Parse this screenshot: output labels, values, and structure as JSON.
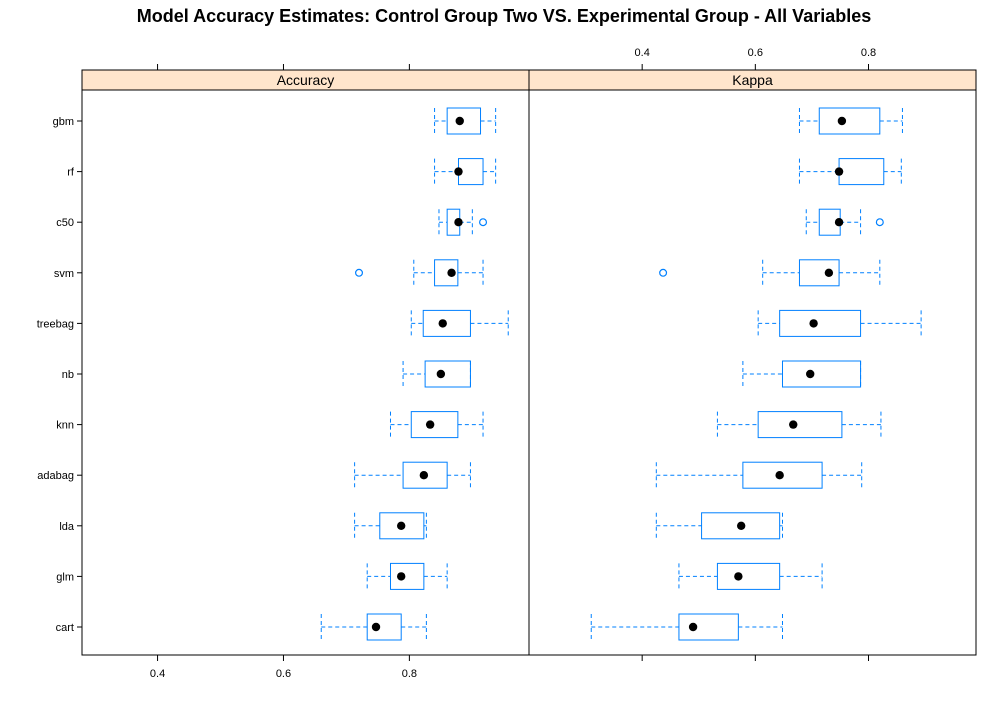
{
  "chart_data": {
    "type": "boxplot",
    "title": "Model Accuracy Estimates: Control Group Two VS. Experimental Group - All Variables",
    "models": [
      "gbm",
      "rf",
      "c50",
      "svm",
      "treebag",
      "nb",
      "knn",
      "adabag",
      "lda",
      "glm",
      "cart"
    ],
    "colors": {
      "box": "#0080ff",
      "median": "#000000",
      "strip": "#ffe5cc",
      "frame": "#000000"
    },
    "panels": [
      {
        "name": "Accuracy",
        "xlim": [
          0.28,
          0.99
        ],
        "ticks": [
          0.4,
          0.6,
          0.8
        ],
        "tick_labels": [
          "0.4",
          "0.6",
          "0.8"
        ],
        "stats": [
          {
            "model": "gbm",
            "min": 0.84,
            "q1": 0.86,
            "median": 0.88,
            "q3": 0.913,
            "max": 0.937,
            "outliers": []
          },
          {
            "model": "rf",
            "min": 0.84,
            "q1": 0.878,
            "median": 0.878,
            "q3": 0.917,
            "max": 0.937,
            "outliers": []
          },
          {
            "model": "c50",
            "min": 0.847,
            "q1": 0.86,
            "median": 0.878,
            "q3": 0.88,
            "max": 0.9,
            "outliers": [
              0.917
            ]
          },
          {
            "model": "svm",
            "min": 0.807,
            "q1": 0.84,
            "median": 0.867,
            "q3": 0.877,
            "max": 0.917,
            "outliers": [
              0.72
            ]
          },
          {
            "model": "treebag",
            "min": 0.803,
            "q1": 0.822,
            "median": 0.853,
            "q3": 0.897,
            "max": 0.957,
            "outliers": []
          },
          {
            "model": "nb",
            "min": 0.79,
            "q1": 0.825,
            "median": 0.85,
            "q3": 0.897,
            "max": 0.897,
            "outliers": []
          },
          {
            "model": "knn",
            "min": 0.77,
            "q1": 0.803,
            "median": 0.833,
            "q3": 0.877,
            "max": 0.917,
            "outliers": []
          },
          {
            "model": "adabag",
            "min": 0.713,
            "q1": 0.79,
            "median": 0.823,
            "q3": 0.86,
            "max": 0.897,
            "outliers": []
          },
          {
            "model": "lda",
            "min": 0.713,
            "q1": 0.753,
            "median": 0.787,
            "q3": 0.823,
            "max": 0.827,
            "outliers": []
          },
          {
            "model": "glm",
            "min": 0.733,
            "q1": 0.77,
            "median": 0.787,
            "q3": 0.823,
            "max": 0.86,
            "outliers": []
          },
          {
            "model": "cart",
            "min": 0.66,
            "q1": 0.733,
            "median": 0.747,
            "q3": 0.787,
            "max": 0.827,
            "outliers": []
          }
        ]
      },
      {
        "name": "Kappa",
        "xlim": [
          0.2,
          0.99
        ],
        "ticks": [
          0.4,
          0.6,
          0.8
        ],
        "tick_labels": [
          "0.4",
          "0.6",
          "0.8"
        ],
        "stats": [
          {
            "model": "gbm",
            "min": 0.678,
            "q1": 0.713,
            "median": 0.753,
            "q3": 0.82,
            "max": 0.86,
            "outliers": []
          },
          {
            "model": "rf",
            "min": 0.678,
            "q1": 0.748,
            "median": 0.748,
            "q3": 0.827,
            "max": 0.858,
            "outliers": []
          },
          {
            "model": "c50",
            "min": 0.69,
            "q1": 0.713,
            "median": 0.748,
            "q3": 0.75,
            "max": 0.786,
            "outliers": [
              0.82
            ]
          },
          {
            "model": "svm",
            "min": 0.613,
            "q1": 0.678,
            "median": 0.73,
            "q3": 0.748,
            "max": 0.82,
            "outliers": [
              0.437
            ]
          },
          {
            "model": "treebag",
            "min": 0.605,
            "q1": 0.643,
            "median": 0.703,
            "q3": 0.786,
            "max": 0.893,
            "outliers": []
          },
          {
            "model": "nb",
            "min": 0.578,
            "q1": 0.648,
            "median": 0.697,
            "q3": 0.786,
            "max": 0.786,
            "outliers": []
          },
          {
            "model": "knn",
            "min": 0.533,
            "q1": 0.605,
            "median": 0.667,
            "q3": 0.753,
            "max": 0.822,
            "outliers": []
          },
          {
            "model": "adabag",
            "min": 0.425,
            "q1": 0.578,
            "median": 0.643,
            "q3": 0.718,
            "max": 0.788,
            "outliers": []
          },
          {
            "model": "lda",
            "min": 0.425,
            "q1": 0.505,
            "median": 0.575,
            "q3": 0.643,
            "max": 0.648,
            "outliers": []
          },
          {
            "model": "glm",
            "min": 0.465,
            "q1": 0.533,
            "median": 0.57,
            "q3": 0.643,
            "max": 0.718,
            "outliers": []
          },
          {
            "model": "cart",
            "min": 0.31,
            "q1": 0.465,
            "median": 0.49,
            "q3": 0.57,
            "max": 0.648,
            "outliers": []
          }
        ]
      }
    ]
  }
}
